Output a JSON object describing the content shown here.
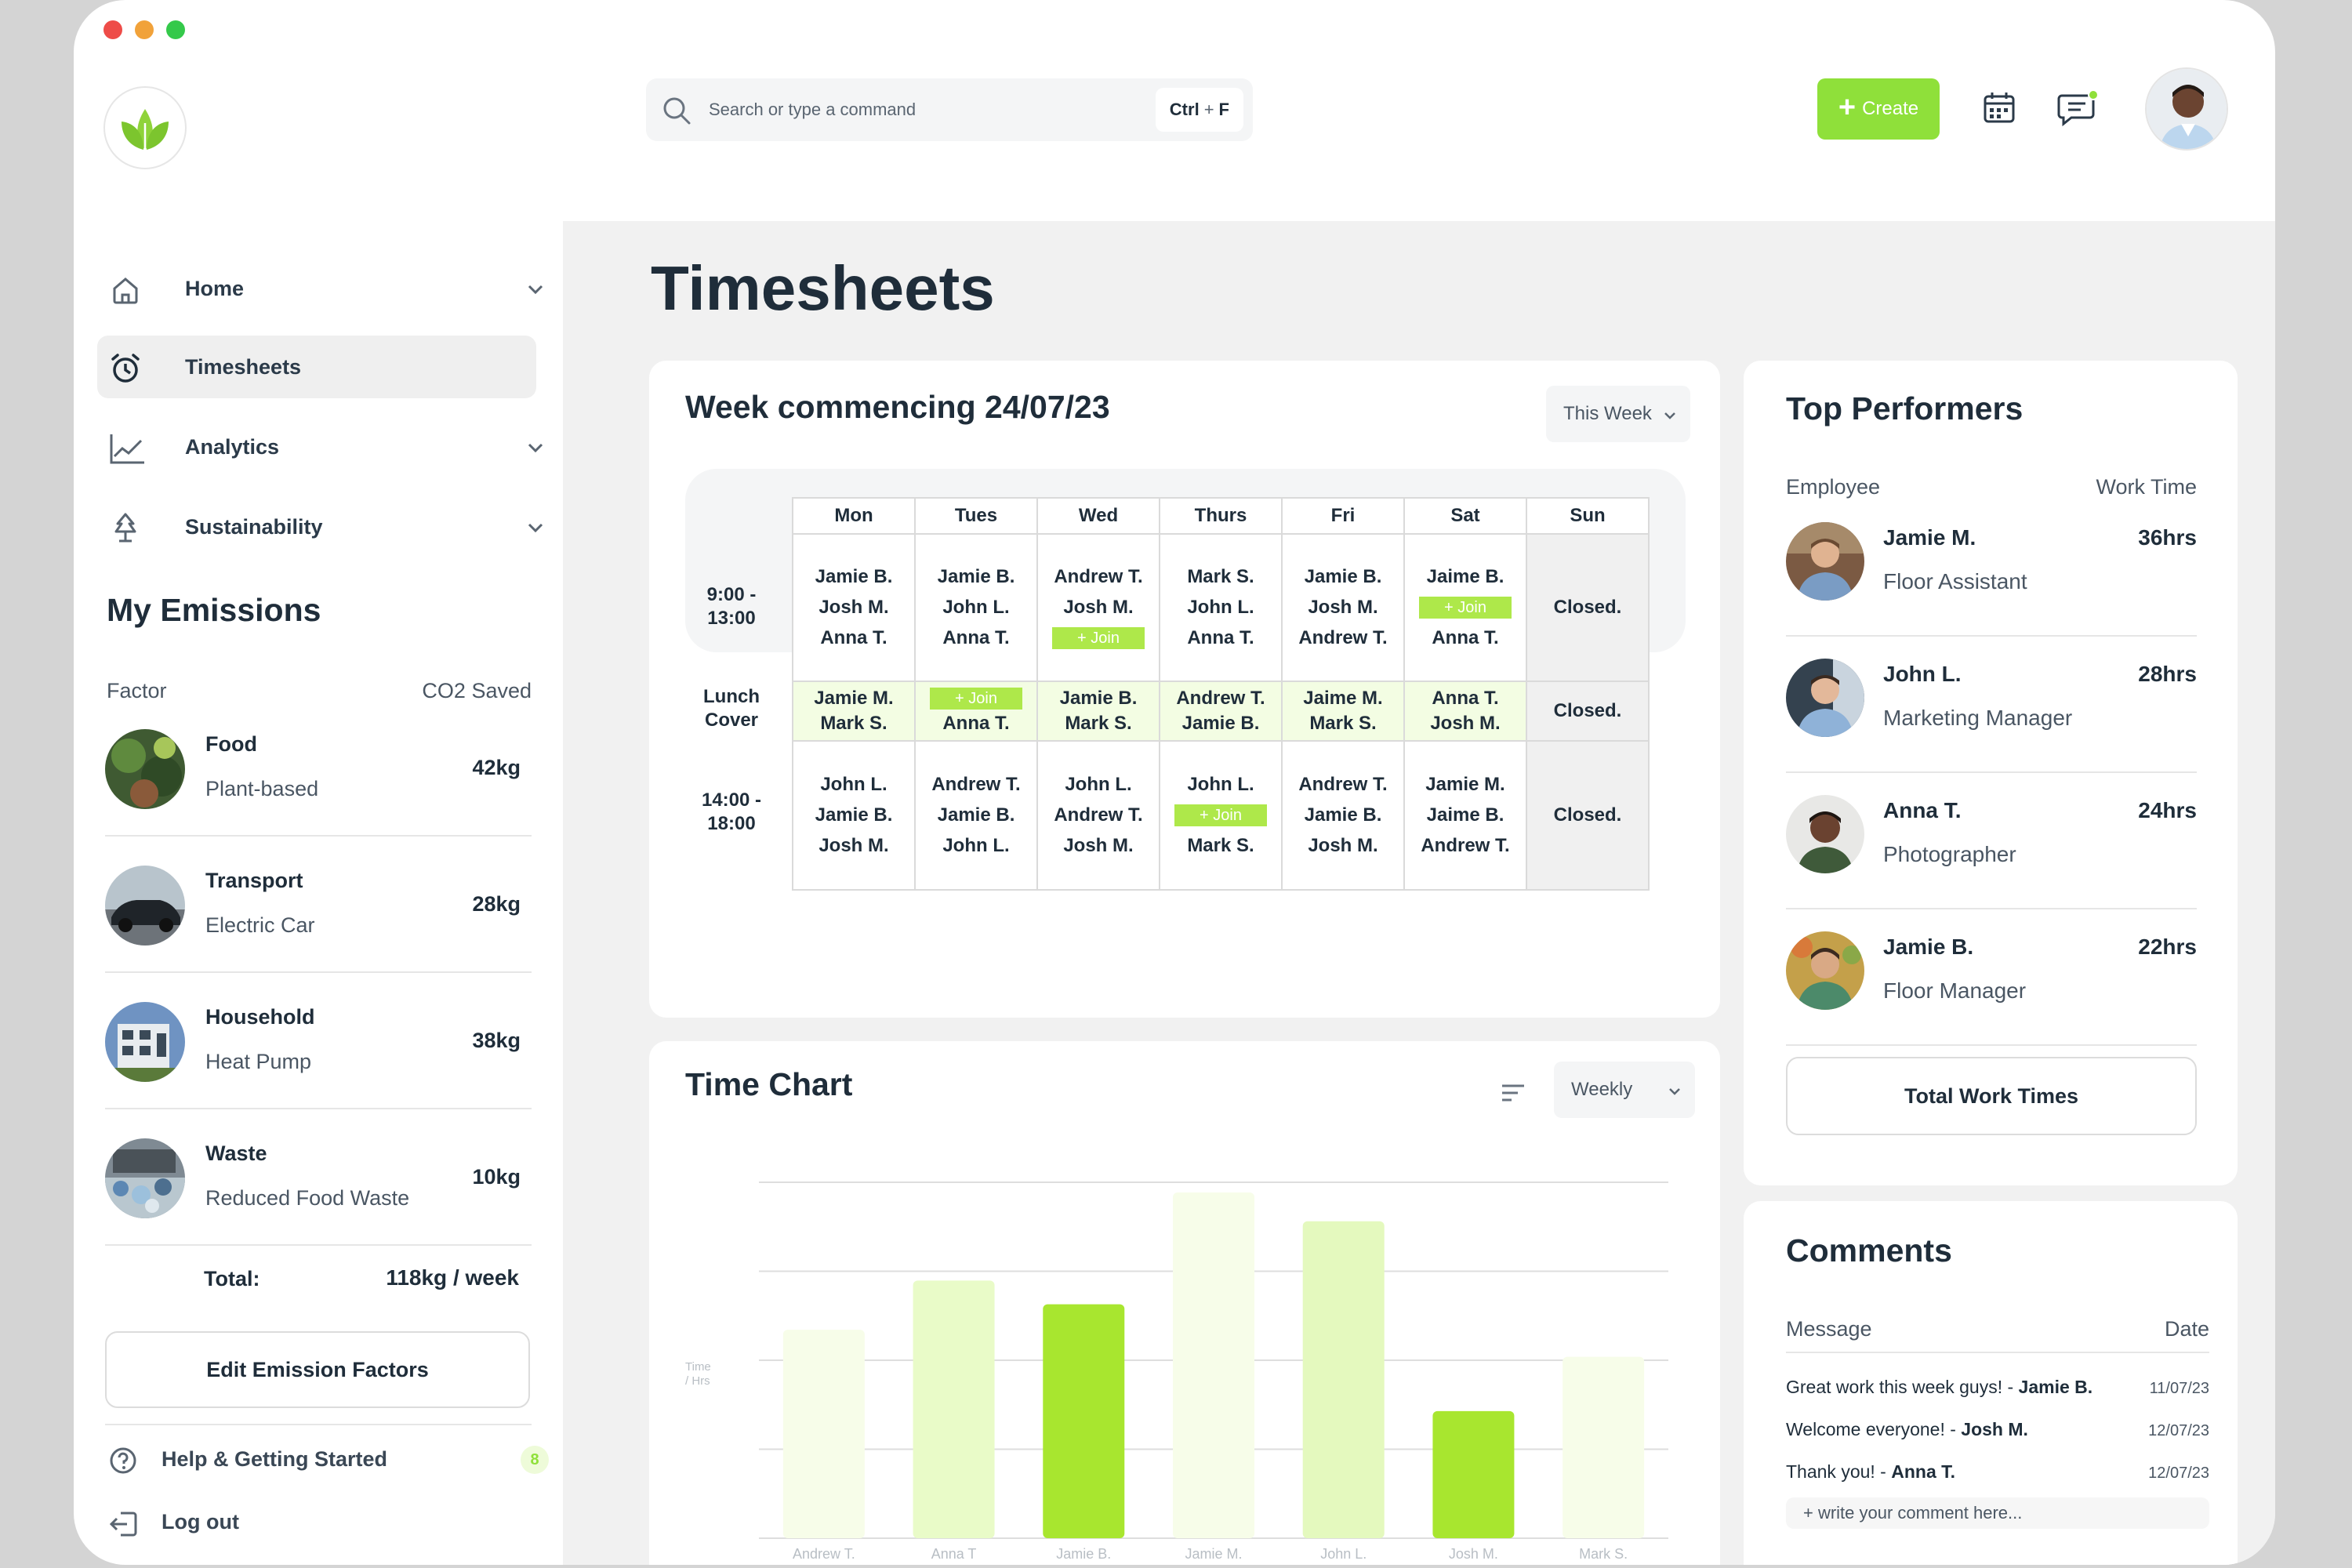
{
  "header": {
    "search": {
      "placeholder": "Search or type a command",
      "shortcut_key1": "Ctrl",
      "shortcut_plus": "+",
      "shortcut_key2": "F"
    },
    "create_label": "Create",
    "icons": {
      "logo": "leaf-logo-icon",
      "search": "search-icon",
      "calendar": "calendar-icon",
      "chat": "chat-notification-icon",
      "avatar": "user-avatar"
    }
  },
  "sidebar": {
    "nav": [
      {
        "label": "Home",
        "icon": "home-icon",
        "has_chevron": true
      },
      {
        "label": "Timesheets",
        "icon": "clock-icon",
        "active": true
      },
      {
        "label": "Analytics",
        "icon": "line-chart-icon",
        "has_chevron": true
      },
      {
        "label": "Sustainability",
        "icon": "tree-icon",
        "has_chevron": true
      }
    ],
    "emissions": {
      "title": "My Emissions",
      "col_factor": "Factor",
      "col_saved": "CO2 Saved",
      "items": [
        {
          "name": "Food",
          "detail": "Plant-based",
          "value": "42kg"
        },
        {
          "name": "Transport",
          "detail": "Electric Car",
          "value": "28kg"
        },
        {
          "name": "Household",
          "detail": "Heat Pump",
          "value": "38kg"
        },
        {
          "name": "Waste",
          "detail": "Reduced Food Waste",
          "value": "10kg"
        }
      ],
      "total_label": "Total:",
      "total_value": "118kg / week",
      "edit_button": "Edit Emission Factors"
    },
    "help_label": "Help & Getting Started",
    "help_badge": "8",
    "logout_label": "Log out"
  },
  "main": {
    "title": "Timesheets",
    "week": {
      "title": "Week commencing 24/07/23",
      "dropdown": "This Week",
      "days": [
        "Mon",
        "Tues",
        "Wed",
        "Thurs",
        "Fri",
        "Sat",
        "Sun"
      ],
      "join_label": "+ Join",
      "closed_label": "Closed.",
      "rows": [
        {
          "label_line1": "9:00 -",
          "label_line2": "13:00",
          "cells": [
            [
              "Jamie B.",
              "Josh M.",
              "Anna T."
            ],
            [
              "Jamie B.",
              "John L.",
              "Anna T."
            ],
            [
              "Andrew T.",
              "Josh M.",
              "+ Join"
            ],
            [
              "Mark S.",
              "John L.",
              "Anna T."
            ],
            [
              "Jamie B.",
              "Josh M.",
              "Andrew T."
            ],
            [
              "Jaime B.",
              "+ Join",
              "Anna T."
            ],
            [
              "Closed."
            ]
          ]
        },
        {
          "label_line1": "Lunch",
          "label_line2": "Cover",
          "cells": [
            [
              "Jamie M.",
              "Mark S."
            ],
            [
              "+ Join",
              "Anna T."
            ],
            [
              "Jamie B.",
              "Mark S."
            ],
            [
              "Andrew T.",
              "Jamie B."
            ],
            [
              "Jaime M.",
              "Mark S."
            ],
            [
              "Anna T.",
              "Josh M."
            ],
            [
              "Closed."
            ]
          ]
        },
        {
          "label_line1": "14:00 -",
          "label_line2": "18:00",
          "cells": [
            [
              "John L.",
              "Jamie B.",
              "Josh M."
            ],
            [
              "Andrew T.",
              "Jamie B.",
              "John L."
            ],
            [
              "John L.",
              "Andrew T.",
              "Josh M."
            ],
            [
              "John L.",
              "+ Join",
              "Mark S."
            ],
            [
              "Andrew T.",
              "Jamie B.",
              "Josh M."
            ],
            [
              "Jamie M.",
              "Jaime B.",
              "Andrew T."
            ],
            [
              "Closed."
            ]
          ]
        }
      ]
    },
    "time_chart": {
      "title": "Time Chart",
      "dropdown": "Weekly",
      "y_label_line1": "Time",
      "y_label_line2": "/ Hrs"
    },
    "top_performers": {
      "title": "Top Performers",
      "col_employee": "Employee",
      "col_time": "Work Time",
      "items": [
        {
          "name": "Jamie M.",
          "role": "Floor Assistant",
          "hours": "36hrs"
        },
        {
          "name": "John L.",
          "role": "Marketing Manager",
          "hours": "28hrs"
        },
        {
          "name": "Anna T.",
          "role": "Photographer",
          "hours": "24hrs"
        },
        {
          "name": "Jamie B.",
          "role": "Floor Manager",
          "hours": "22hrs"
        }
      ],
      "button": "Total Work Times"
    },
    "comments": {
      "title": "Comments",
      "col_message": "Message",
      "col_date": "Date",
      "items": [
        {
          "text": "Great work this week guys! - ",
          "author": "Jamie B.",
          "date": "11/07/23"
        },
        {
          "text": "Welcome everyone! - ",
          "author": "Josh M.",
          "date": "12/07/23"
        },
        {
          "text": "Thank you! - ",
          "author": "Anna T.",
          "date": "12/07/23"
        }
      ],
      "write_placeholder": "+ write your comment here..."
    }
  },
  "chart_data": {
    "type": "bar",
    "categories": [
      "Andrew T.",
      "Anna T",
      "Jamie B.",
      "Jamie M.",
      "John L.",
      "Josh M.",
      "Mark S."
    ],
    "values": [
      12.3,
      15.2,
      13.8,
      20.4,
      18.7,
      7.5,
      10.7
    ],
    "ylim": [
      0,
      21
    ],
    "colors": [
      "#f7fde9",
      "#e9fbc8",
      "#a8e62f",
      "#f7fde9",
      "#e4f9be",
      "#a8e62f",
      "#f7fde9"
    ],
    "xlabel": "",
    "ylabel": "Time / Hrs",
    "grid": true
  }
}
